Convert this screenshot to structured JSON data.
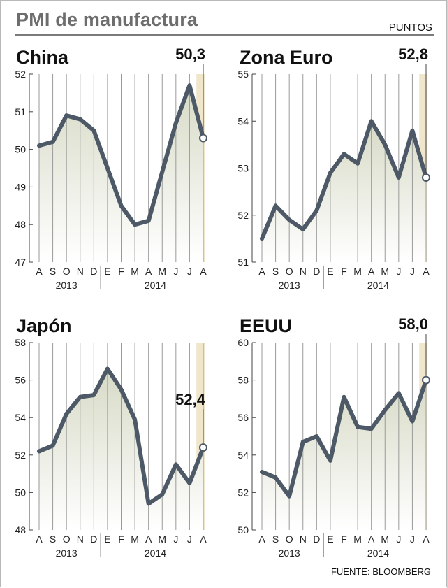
{
  "header": {
    "title": "PMI de manufactura",
    "units": "PUNTOS"
  },
  "footer": {
    "source": "FUENTE: BLOOMBERG"
  },
  "colors": {
    "line": "#4d5966",
    "grid": "#9a9a9a",
    "fill_top": "#d7dac6",
    "highlight": "#efe6cc"
  },
  "chart_data": [
    {
      "type": "line",
      "title": "China",
      "categories": [
        "A",
        "S",
        "O",
        "N",
        "D",
        "E",
        "F",
        "M",
        "A",
        "M",
        "J",
        "J",
        "A"
      ],
      "year_labels": [
        "2013",
        "2014"
      ],
      "values": [
        50.1,
        50.2,
        50.9,
        50.8,
        50.5,
        49.5,
        48.5,
        48.0,
        48.1,
        49.4,
        50.7,
        51.7,
        50.3
      ],
      "ylim": [
        47,
        52
      ],
      "yticks": [
        47,
        48,
        49,
        50,
        51,
        52
      ],
      "callout": "50,3"
    },
    {
      "type": "line",
      "title": "Zona Euro",
      "categories": [
        "A",
        "S",
        "O",
        "N",
        "D",
        "E",
        "F",
        "M",
        "A",
        "M",
        "J",
        "J",
        "A"
      ],
      "year_labels": [
        "2013",
        "2014"
      ],
      "values": [
        51.5,
        52.2,
        51.9,
        51.7,
        52.1,
        52.9,
        53.3,
        53.1,
        54.0,
        53.5,
        52.8,
        53.8,
        52.8
      ],
      "ylim": [
        51,
        55
      ],
      "yticks": [
        51,
        52,
        53,
        54,
        55
      ],
      "callout": "52,8"
    },
    {
      "type": "line",
      "title": "Japón",
      "categories": [
        "A",
        "S",
        "O",
        "N",
        "D",
        "E",
        "F",
        "M",
        "A",
        "M",
        "J",
        "J",
        "A"
      ],
      "year_labels": [
        "2013",
        "2014"
      ],
      "values": [
        52.2,
        52.5,
        54.2,
        55.1,
        55.2,
        56.6,
        55.5,
        53.9,
        49.4,
        49.9,
        51.5,
        50.5,
        52.4
      ],
      "ylim": [
        48,
        58
      ],
      "yticks": [
        48,
        50,
        52,
        54,
        56,
        58
      ],
      "callout": "52,4"
    },
    {
      "type": "line",
      "title": "EEUU",
      "categories": [
        "A",
        "S",
        "O",
        "N",
        "D",
        "E",
        "F",
        "M",
        "A",
        "M",
        "J",
        "J",
        "A"
      ],
      "year_labels": [
        "2013",
        "2014"
      ],
      "values": [
        53.1,
        52.8,
        51.8,
        54.7,
        55.0,
        53.7,
        57.1,
        55.5,
        55.4,
        56.4,
        57.3,
        55.8,
        58.0
      ],
      "ylim": [
        50,
        60
      ],
      "yticks": [
        50,
        52,
        54,
        56,
        58,
        60
      ],
      "callout": "58,0"
    }
  ]
}
